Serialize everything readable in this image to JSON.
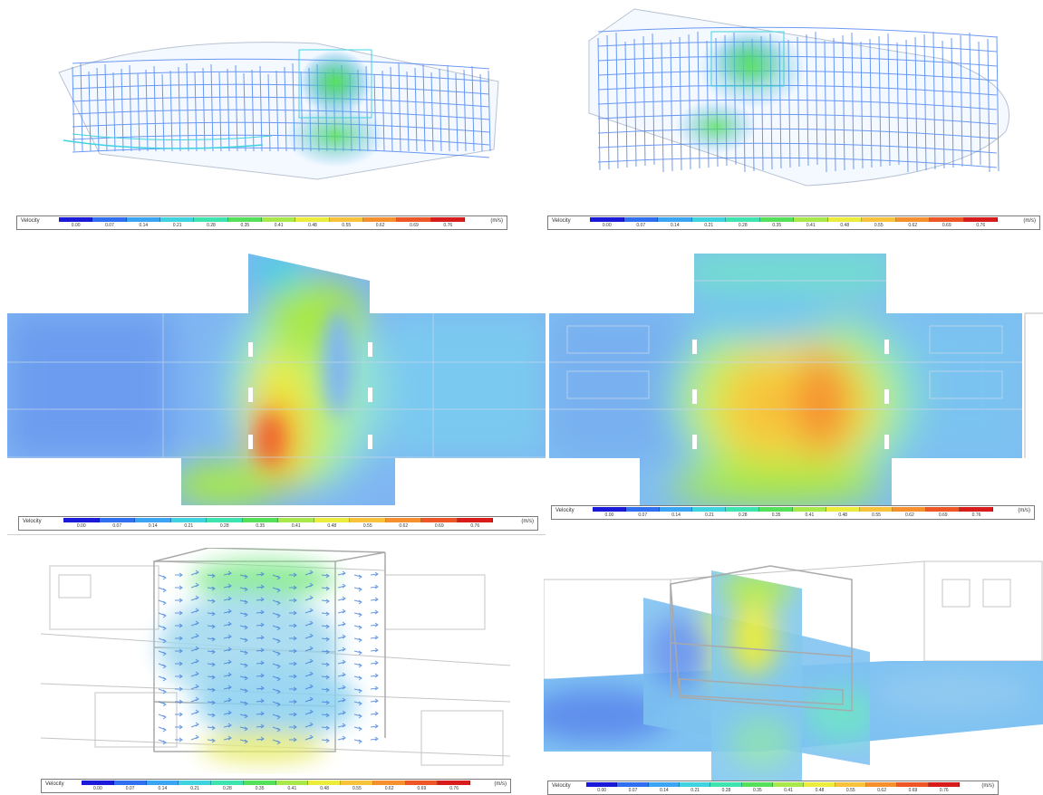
{
  "legend": {
    "label": "Velocity",
    "unit": "(m/s)",
    "ticks": [
      "0.00",
      "0.07",
      "0.14",
      "0.21",
      "0.28",
      "0.35",
      "0.41",
      "0.48",
      "0.55",
      "0.62",
      "0.69",
      "0.76"
    ],
    "colors": [
      "#1a1ad8",
      "#2f6ff0",
      "#39a5f3",
      "#3fd3e0",
      "#3ee4b0",
      "#55e05a",
      "#a8e84a",
      "#ecec3c",
      "#f8c23a",
      "#f6902e",
      "#ee5628",
      "#d81c1c"
    ]
  },
  "panels": [
    {
      "name": "streamline-view-1",
      "kind": "streamline-3d"
    },
    {
      "name": "streamline-view-2",
      "kind": "streamline-3d"
    },
    {
      "name": "velocity-contour-plan-1",
      "kind": "contour-2d"
    },
    {
      "name": "velocity-contour-plan-2",
      "kind": "contour-2d"
    },
    {
      "name": "vector-view-3d",
      "kind": "vector-3d"
    },
    {
      "name": "slice-planes-view-3d",
      "kind": "slice-3d"
    }
  ]
}
